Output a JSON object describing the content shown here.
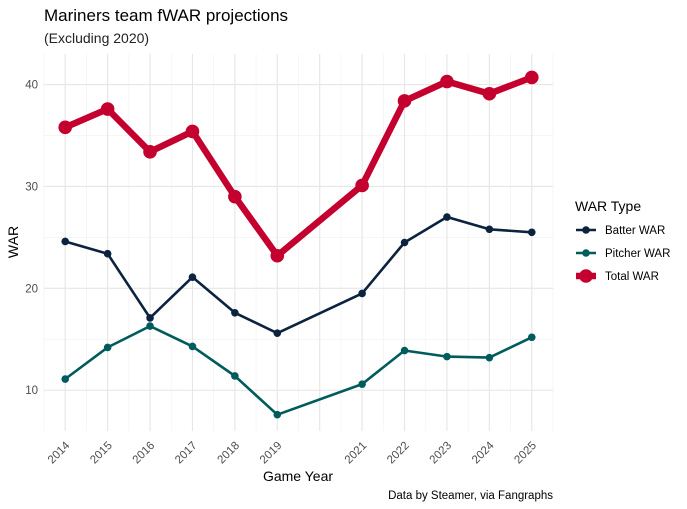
{
  "chart_data": {
    "type": "line",
    "title": "Mariners team fWAR projections",
    "subtitle": "(Excluding 2020)",
    "xlabel": "Game Year",
    "ylabel": "WAR",
    "caption": "Data by Steamer, via Fangraphs",
    "x": [
      2014,
      2015,
      2016,
      2017,
      2018,
      2019,
      2021,
      2022,
      2023,
      2024,
      2025
    ],
    "xlim": [
      2013.5,
      2025.5
    ],
    "ylim": [
      6,
      43
    ],
    "yticks": [
      10,
      20,
      30,
      40
    ],
    "grid": true,
    "legend": {
      "title": "WAR Type",
      "position": "right"
    },
    "series": [
      {
        "name": "Batter WAR",
        "color": "#0c2340",
        "values": [
          24.6,
          23.4,
          17.1,
          21.1,
          17.6,
          15.6,
          19.5,
          24.5,
          27.0,
          25.8,
          25.5
        ]
      },
      {
        "name": "Pitcher WAR",
        "color": "#005c5c",
        "values": [
          11.1,
          14.2,
          16.3,
          14.3,
          11.4,
          7.6,
          10.6,
          13.9,
          13.3,
          13.2,
          15.2
        ]
      },
      {
        "name": "Total WAR",
        "color": "#c4002f",
        "values": [
          35.8,
          37.6,
          33.4,
          35.4,
          29.0,
          23.2,
          30.1,
          38.4,
          40.3,
          39.1,
          40.7
        ]
      }
    ]
  }
}
